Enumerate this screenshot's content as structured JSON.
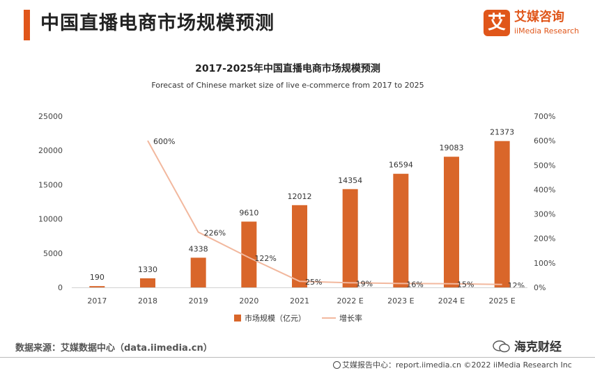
{
  "page": {
    "title": "中国直播电商市场规模预测"
  },
  "brand": {
    "mark": "艾",
    "name_cn": "艾媒咨询",
    "name_en": "iiMedia Research"
  },
  "colors": {
    "accent": "#E0561A",
    "bar": "#D9662A",
    "line": "#F2B89E",
    "text": "#333333"
  },
  "footer": {
    "source": "数据来源：艾媒数据中心（data.iimedia.cn）",
    "watermark": "海克财经",
    "report": "艾媒报告中心：report.iimedia.cn  ©2022  iiMedia Research  Inc"
  },
  "chart_data": {
    "type": "bar",
    "title": "2017-2025年中国直播电商市场规模预测",
    "subtitle": "Forecast of Chinese market size of live e-commerce from 2017 to 2025",
    "categories": [
      "2017",
      "2018",
      "2019",
      "2020",
      "2021",
      "2022 E",
      "2023 E",
      "2024 E",
      "2025 E"
    ],
    "series": [
      {
        "name": "市场规模（亿元）",
        "type": "bar",
        "axis": "left",
        "values": [
          190,
          1330,
          4338,
          9610,
          12012,
          14354,
          16594,
          19083,
          21373
        ],
        "labels": [
          "190",
          "1330",
          "4338",
          "9610",
          "12012",
          "14354",
          "16594",
          "19083",
          "21373"
        ]
      },
      {
        "name": "增长率",
        "type": "line",
        "axis": "right",
        "values": [
          null,
          600,
          226,
          122,
          25,
          19,
          16,
          15,
          12
        ],
        "labels": [
          "",
          "600%",
          "226%",
          "122%",
          "25%",
          "19%",
          "16%",
          "15%",
          "12%"
        ]
      }
    ],
    "yleft": {
      "min": 0,
      "max": 25000,
      "ticks": [
        "0",
        "5000",
        "10000",
        "15000",
        "20000",
        "25000"
      ]
    },
    "yright": {
      "min": 0,
      "max": 700,
      "ticks": [
        "0%",
        "100%",
        "200%",
        "300%",
        "400%",
        "500%",
        "600%",
        "700%"
      ]
    },
    "grid": false,
    "legend": "bottom-center"
  }
}
